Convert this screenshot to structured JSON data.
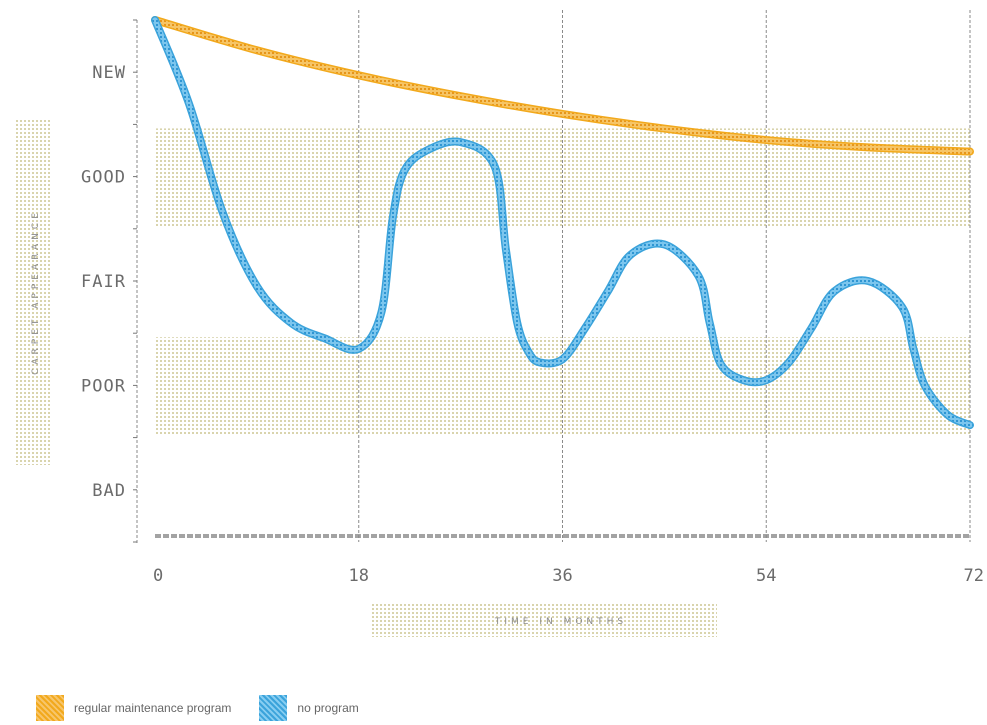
{
  "chart_data": {
    "type": "line",
    "xlabel": "TIME IN MONTHS",
    "ylabel": "CARPET APPEARANCE",
    "x_ticks": [
      0,
      18,
      36,
      54,
      72
    ],
    "y_ticks": [
      "NEW",
      "GOOD",
      "FAIR",
      "POOR",
      "BAD"
    ],
    "xlim": [
      0,
      72
    ],
    "ylim": [
      0,
      5
    ],
    "grid": "vertical",
    "bands": [
      {
        "label": "GOOD",
        "from": 3.0,
        "to": 4.0
      },
      {
        "label": "POOR",
        "from": 1.0,
        "to": 2.0
      }
    ],
    "series": [
      {
        "name": "regular maintenance program",
        "color": "#f2a91c",
        "x": [
          0,
          9,
          18,
          27,
          36,
          45,
          54,
          63,
          72
        ],
        "y": [
          5.0,
          4.71,
          4.47,
          4.27,
          4.1,
          3.96,
          3.85,
          3.78,
          3.74
        ]
      },
      {
        "name": "no program",
        "color": "#3ba3db",
        "x": [
          0,
          3,
          6,
          9,
          12,
          15,
          18,
          20,
          21,
          22,
          24,
          27,
          30,
          31,
          32,
          33,
          34,
          36,
          38,
          40,
          42,
          45,
          48,
          49,
          50,
          52,
          54,
          56,
          58,
          60,
          63,
          66,
          67,
          68,
          70,
          72
        ],
        "y": [
          5.0,
          4.2,
          3.15,
          2.45,
          2.1,
          1.95,
          1.85,
          2.2,
          3.1,
          3.55,
          3.75,
          3.83,
          3.6,
          2.8,
          2.1,
          1.82,
          1.72,
          1.75,
          2.05,
          2.4,
          2.75,
          2.85,
          2.55,
          2.1,
          1.7,
          1.55,
          1.55,
          1.72,
          2.05,
          2.4,
          2.5,
          2.25,
          1.85,
          1.5,
          1.22,
          1.12
        ]
      }
    ]
  },
  "legend": [
    {
      "label": "regular maintenance program",
      "color": "#f2a91c"
    },
    {
      "label": "no program",
      "color": "#3ba3db"
    }
  ]
}
